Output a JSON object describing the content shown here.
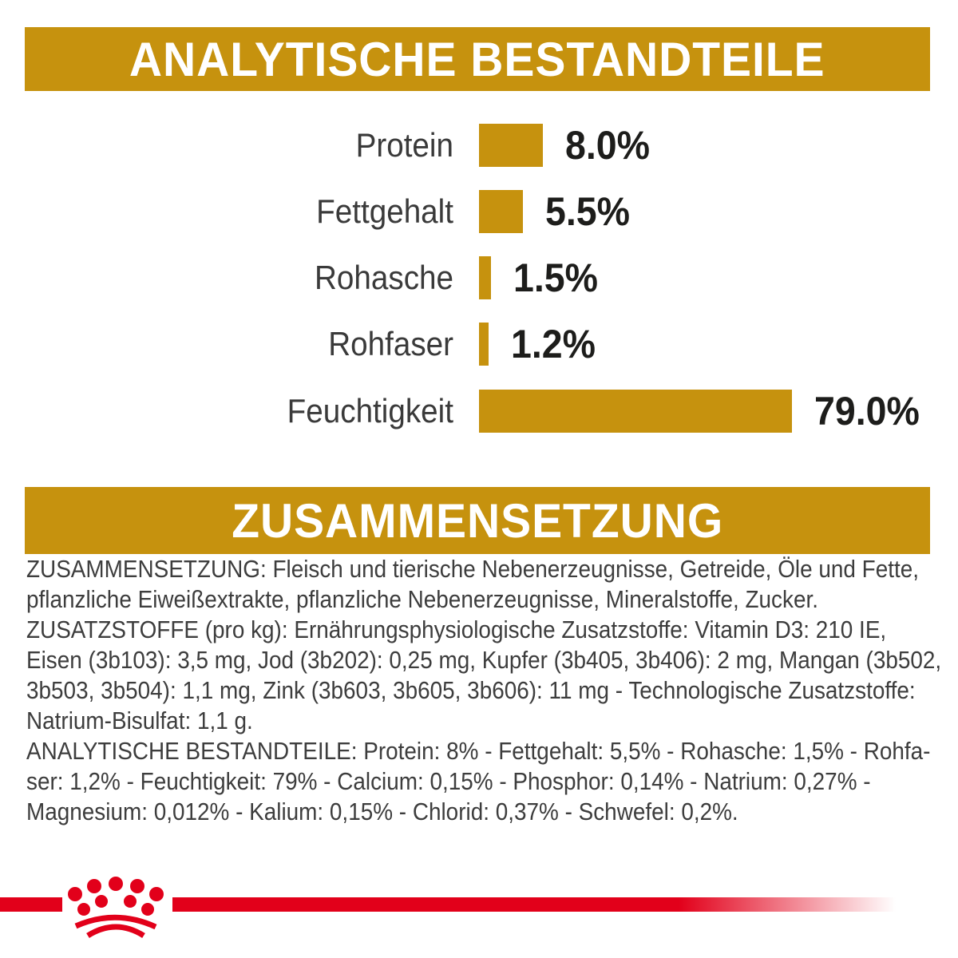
{
  "headers": {
    "analytical": "ANALYTISCHE BESTANDTEILE",
    "composition": "ZUSAMMENSETZUNG"
  },
  "colors": {
    "gold": "#C6920E",
    "red": "#E2001A",
    "text_dark": "#1D1D1B",
    "text_body": "#3D3D3D"
  },
  "chart_data": {
    "type": "bar",
    "orientation": "horizontal",
    "title": "ANALYTISCHE BESTANDTEILE",
    "unit": "%",
    "categories": [
      "Protein",
      "Fettgehalt",
      "Rohasche",
      "Rohfaser",
      "Feuchtigkeit"
    ],
    "values": [
      8.0,
      5.5,
      1.5,
      1.2,
      79.0
    ],
    "bar_color": "#C6920E",
    "value_label_style": "bold black, right of bar",
    "rows": [
      {
        "label": "Protein",
        "value": 8.0,
        "value_label": "8.0%"
      },
      {
        "label": "Fettgehalt",
        "value": 5.5,
        "value_label": "5.5%"
      },
      {
        "label": "Rohasche",
        "value": 1.5,
        "value_label": "1.5%"
      },
      {
        "label": "Rohfaser",
        "value": 1.2,
        "value_label": "1.2%"
      },
      {
        "label": "Feuchtigkeit",
        "value": 79.0,
        "value_label": "79.0%"
      }
    ]
  },
  "composition": {
    "paragraphs": [
      [
        "ZUSAMMENSETZUNG: Fleisch und tierische Nebenerzeugnisse, Getreide, Öle und Fette,",
        "pflanzliche Eiweißextrakte, pflanzliche Nebenerzeugnisse, Mineralstoffe, Zucker."
      ],
      [
        "ZUSATZSTOFFE (pro kg): Ernährungsphysiologische Zusatzstoffe: Vitamin D3: 210 IE,",
        "Eisen (3b103): 3,5 mg, Jod (3b202): 0,25 mg, Kupfer (3b405, 3b406): 2 mg, Mangan (3b502,",
        "3b503, 3b504): 1,1 mg, Zink (3b603, 3b605, 3b606): 11 mg - Technologische Zusatzstoffe:",
        "Natrium-Bisulfat: 1,1 g."
      ],
      [
        "ANALYTISCHE BESTANDTEILE: Protein: 8% - Fettgehalt: 5,5% - Rohasche: 1,5% - Rohfa-",
        "ser: 1,2% - Feuchtigkeit: 79% - Calcium: 0,15% - Phosphor: 0,14% - Natrium: 0,27% -",
        "Magnesium: 0,012% - Kalium: 0,15% - Chlorid: 0,37% - Schwefel: 0,2%."
      ]
    ]
  },
  "footer": {
    "logo": "royal-canin-crown"
  }
}
